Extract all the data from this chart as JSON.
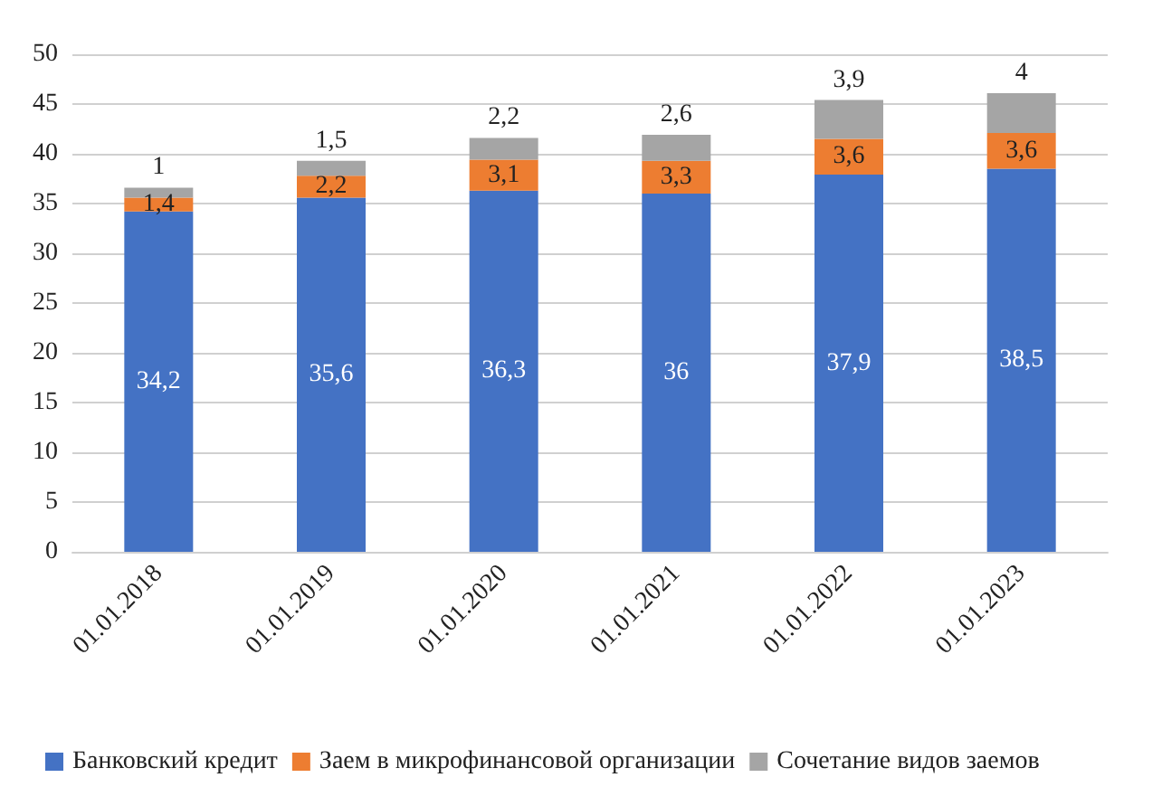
{
  "chart_data": {
    "type": "bar",
    "stacked": true,
    "categories": [
      "01.01.2018",
      "01.01.2019",
      "01.01.2020",
      "01.01.2021",
      "01.01.2022",
      "01.01.2023"
    ],
    "series": [
      {
        "name": "Банковский кредит",
        "color": "#4472c4",
        "values": [
          34.2,
          35.6,
          36.3,
          36,
          37.9,
          38.5
        ],
        "value_labels": [
          "34,2",
          "35,6",
          "36,3",
          "36",
          "37,9",
          "38,5"
        ]
      },
      {
        "name": "Заем в микрофинансовой организации",
        "color": "#ed7d31",
        "values": [
          1.4,
          2.2,
          3.1,
          3.3,
          3.6,
          3.6
        ],
        "value_labels": [
          "1,4",
          "2,2",
          "3,1",
          "3,3",
          "3,6",
          "3,6"
        ]
      },
      {
        "name": "Сочетание видов заемов",
        "color": "#a5a5a5",
        "values": [
          1,
          1.5,
          2.2,
          2.6,
          3.9,
          4
        ],
        "value_labels": [
          "1",
          "1,5",
          "2,2",
          "2,6",
          "3,9",
          "4"
        ]
      }
    ],
    "ylim": [
      0,
      50
    ],
    "yticks": [
      0,
      5,
      10,
      15,
      20,
      25,
      30,
      35,
      40,
      45,
      50
    ],
    "grid": "y",
    "legend": "bottom"
  }
}
